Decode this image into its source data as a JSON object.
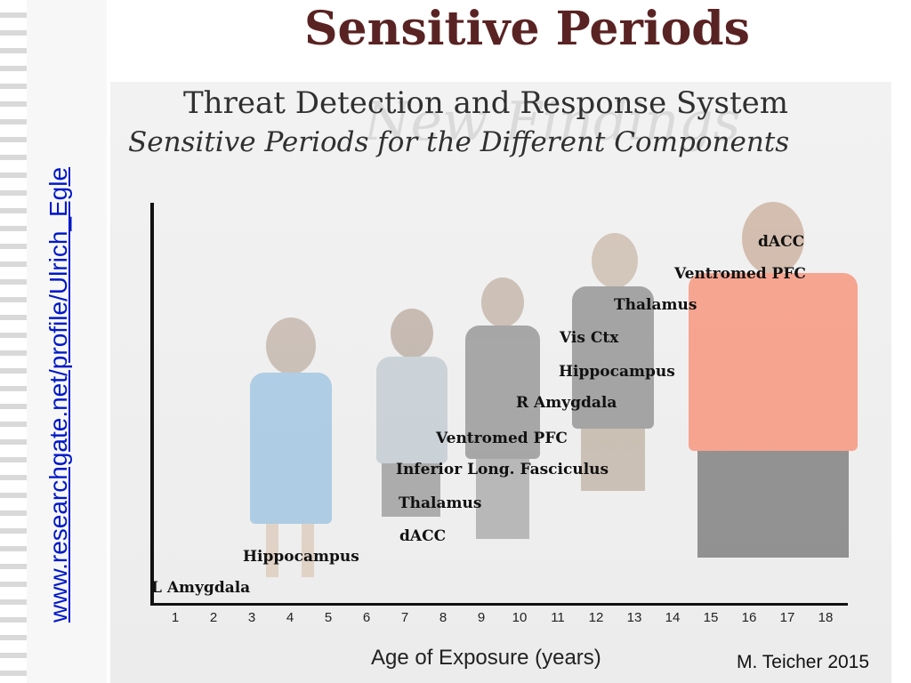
{
  "main_title": "Sensitive Periods",
  "slide": {
    "watermark": "New Findings",
    "title": "Threat Detection and Response System",
    "subtitle": "Sensitive Periods for the Different Components"
  },
  "x_axis": {
    "label": "Age of Exposure (years)",
    "ticks": [
      "1",
      "2",
      "3",
      "4",
      "5",
      "6",
      "7",
      "8",
      "9",
      "10",
      "11",
      "12",
      "13",
      "14",
      "15",
      "16",
      "17",
      "18"
    ]
  },
  "regions": [
    {
      "label": "L Amygdala"
    },
    {
      "label": "Hippocampus"
    },
    {
      "label": "dACC"
    },
    {
      "label": "Thalamus"
    },
    {
      "label": "Inferior Long. Fasciculus"
    },
    {
      "label": "Ventromed PFC"
    },
    {
      "label": "R Amygdala"
    },
    {
      "label": "Hippocampus"
    },
    {
      "label": "Vis Ctx"
    },
    {
      "label": "Thalamus"
    },
    {
      "label": "Ventromed PFC"
    },
    {
      "label": "dACC"
    }
  ],
  "credit": "M. Teicher 2015",
  "source_url": "www.researchgate.net/profile/Ulrich_Egle"
}
